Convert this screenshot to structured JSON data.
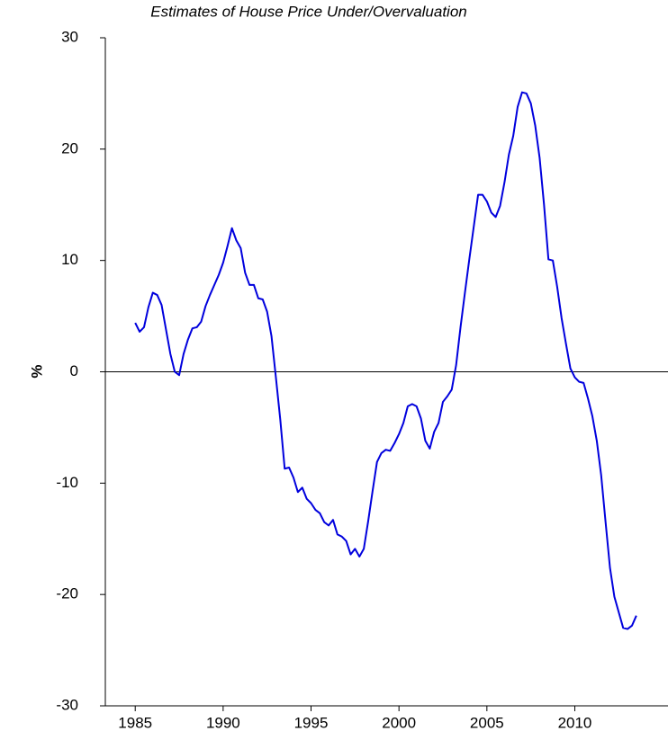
{
  "chart_data": {
    "type": "line",
    "title": "Estimates of House Price Under/Overvaluation",
    "y_label": "%",
    "x": [
      1985.0,
      1985.25,
      1985.5,
      1985.75,
      1986.0,
      1986.25,
      1986.5,
      1986.75,
      1987.0,
      1987.25,
      1987.5,
      1987.75,
      1988.0,
      1988.25,
      1988.5,
      1988.75,
      1989.0,
      1989.25,
      1989.5,
      1989.75,
      1990.0,
      1990.25,
      1990.5,
      1990.75,
      1991.0,
      1991.25,
      1991.5,
      1991.75,
      1992.0,
      1992.25,
      1992.5,
      1992.75,
      1993.0,
      1993.25,
      1993.5,
      1993.75,
      1994.0,
      1994.25,
      1994.5,
      1994.75,
      1995.0,
      1995.25,
      1995.5,
      1995.75,
      1996.0,
      1996.25,
      1996.5,
      1996.75,
      1997.0,
      1997.25,
      1997.5,
      1997.75,
      1998.0,
      1998.25,
      1998.5,
      1998.75,
      1999.0,
      1999.25,
      1999.5,
      1999.75,
      2000.0,
      2000.25,
      2000.5,
      2000.75,
      2001.0,
      2001.25,
      2001.5,
      2001.75,
      2002.0,
      2002.25,
      2002.5,
      2002.75,
      2003.0,
      2003.25,
      2003.5,
      2003.75,
      2004.0,
      2004.25,
      2004.5,
      2004.75,
      2005.0,
      2005.25,
      2005.5,
      2005.75,
      2006.0,
      2006.25,
      2006.5,
      2006.75,
      2007.0,
      2007.25,
      2007.5,
      2007.75,
      2008.0,
      2008.25,
      2008.5,
      2008.75,
      2009.0,
      2009.25,
      2009.5,
      2009.75,
      2010.0,
      2010.25,
      2010.5,
      2010.75,
      2011.0,
      2011.25,
      2011.5,
      2011.75,
      2012.0,
      2012.25,
      2012.5,
      2012.75,
      2013.0,
      2013.25,
      2013.5
    ],
    "series": [
      {
        "color": "#0000dd",
        "values": [
          4.4,
          3.6,
          4.0,
          5.8,
          7.1,
          6.9,
          6.0,
          3.8,
          1.6,
          0.0,
          -0.3,
          1.6,
          2.9,
          3.9,
          4.0,
          4.5,
          5.9,
          6.9,
          7.8,
          8.7,
          9.8,
          11.3,
          12.9,
          11.8,
          11.1,
          8.9,
          7.8,
          7.8,
          6.6,
          6.5,
          5.4,
          3.2,
          -0.5,
          -4.3,
          -8.7,
          -8.6,
          -9.5,
          -10.8,
          -10.4,
          -11.4,
          -11.8,
          -12.4,
          -12.7,
          -13.5,
          -13.8,
          -13.3,
          -14.6,
          -14.8,
          -15.2,
          -16.4,
          -15.9,
          -16.6,
          -15.9,
          -13.4,
          -10.7,
          -8.1,
          -7.3,
          -7.0,
          -7.1,
          -6.4,
          -5.6,
          -4.6,
          -3.1,
          -2.9,
          -3.1,
          -4.2,
          -6.2,
          -6.9,
          -5.4,
          -4.6,
          -2.7,
          -2.2,
          -1.6,
          0.6,
          4.0,
          7.1,
          10.1,
          13.0,
          15.9,
          15.9,
          15.3,
          14.3,
          13.9,
          14.9,
          17.0,
          19.5,
          21.2,
          23.8,
          25.1,
          25.0,
          24.1,
          22.1,
          19.2,
          15.0,
          10.1,
          10.0,
          7.6,
          4.8,
          2.5,
          0.3,
          -0.5,
          -0.9,
          -1.0,
          -2.4,
          -4.0,
          -6.2,
          -9.3,
          -13.5,
          -17.6,
          -20.2,
          -21.6,
          -23.0,
          -23.1,
          -22.8,
          -21.9
        ]
      }
    ],
    "xlim": [
      1983.3,
      2015.3
    ],
    "xticks": [
      1985,
      1990,
      1995,
      2000,
      2005,
      2010
    ],
    "ylim": [
      -30,
      30
    ],
    "yticks": [
      -30,
      -20,
      -10,
      0,
      10,
      20,
      30
    ]
  }
}
